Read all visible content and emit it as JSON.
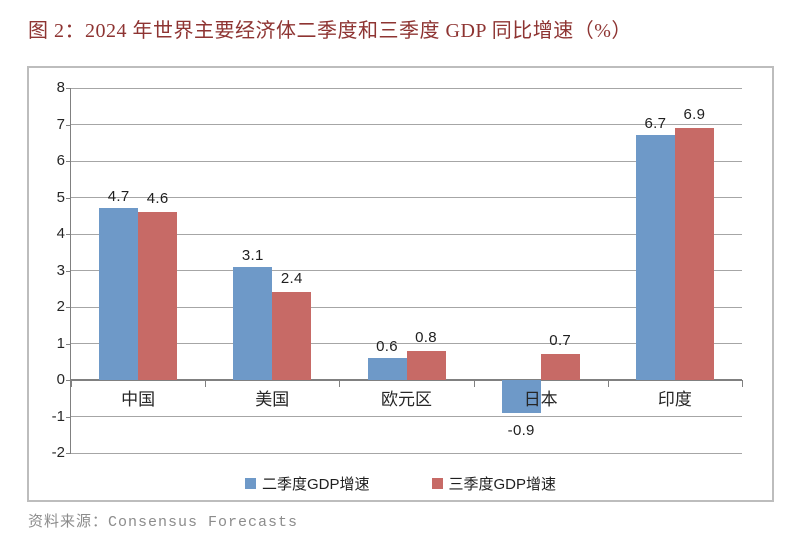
{
  "title": "图 2：2024 年世界主要经济体二季度和三季度 GDP 同比增速（%）",
  "source_note": "资料来源：Consensus Forecasts",
  "colors": {
    "title": "#8e3432",
    "grid": "#a6a6a6",
    "axis": "#808080",
    "box_border": "#bdbdbd",
    "bar_blue": "#6e99c8",
    "bar_red": "#c76a66",
    "source_text": "#8c8c8c",
    "label_text": "#1f1f1f"
  },
  "chart_data": {
    "type": "bar",
    "title": "图 2：2024 年世界主要经济体二季度和三季度 GDP 同比增速（%）",
    "categories": [
      "中国",
      "美国",
      "欧元区",
      "日本",
      "印度"
    ],
    "series": [
      {
        "name": "二季度GDP增速",
        "color": "#6e99c8",
        "values": [
          4.7,
          3.1,
          0.6,
          -0.9,
          6.7
        ]
      },
      {
        "name": "三季度GDP增速",
        "color": "#c76a66",
        "values": [
          4.6,
          2.4,
          0.8,
          0.7,
          6.9
        ]
      }
    ],
    "xlabel": "",
    "ylabel": "",
    "ylim": [
      -2,
      8
    ],
    "ytick_step": 1,
    "grid": true,
    "legend_position": "bottom",
    "value_labels": true
  }
}
